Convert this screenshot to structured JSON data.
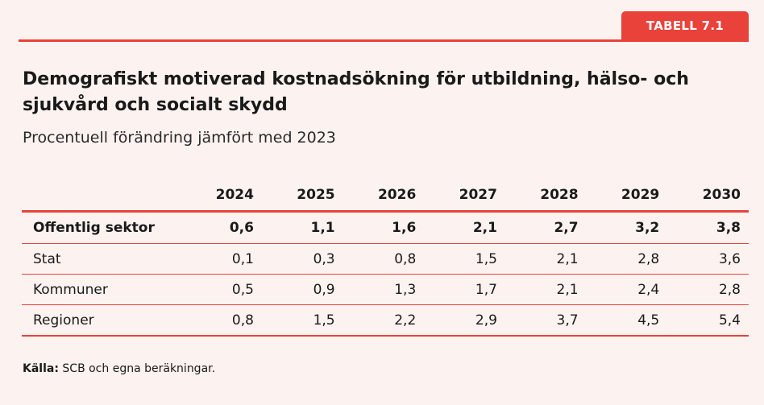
{
  "tag_label": "TABELL 7.1",
  "title": "Demografiskt motiverad kostnadsökning för utbildning, hälso- och sjukvård och socialt skydd",
  "subtitle": "Procentuell förändring jämfört med 2023",
  "table": {
    "columns": [
      "2024",
      "2025",
      "2026",
      "2027",
      "2028",
      "2029",
      "2030"
    ],
    "rows": [
      {
        "label": "Offentlig sektor",
        "values": [
          "0,6",
          "1,1",
          "1,6",
          "2,1",
          "2,7",
          "3,2",
          "3,8"
        ]
      },
      {
        "label": "Stat",
        "values": [
          "0,1",
          "0,3",
          "0,8",
          "1,5",
          "2,1",
          "2,8",
          "3,6"
        ]
      },
      {
        "label": "Kommuner",
        "values": [
          "0,5",
          "0,9",
          "1,3",
          "1,7",
          "2,1",
          "2,4",
          "2,8"
        ]
      },
      {
        "label": "Regioner",
        "values": [
          "0,8",
          "1,5",
          "2,2",
          "2,9",
          "3,7",
          "4,5",
          "5,4"
        ]
      }
    ]
  },
  "source": {
    "label": "Källa:",
    "text": " SCB och egna beräkningar."
  },
  "colors": {
    "accent": "#e9423a",
    "background": "#fcf2f0",
    "text": "#1a1a1a"
  }
}
